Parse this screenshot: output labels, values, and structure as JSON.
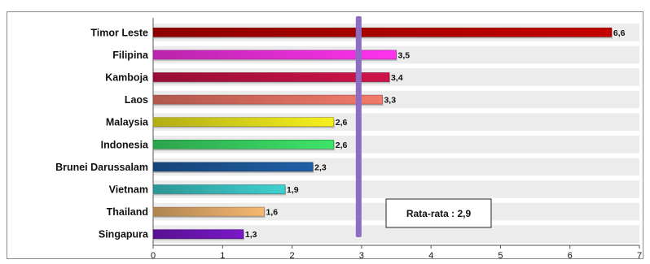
{
  "chart_data": {
    "type": "bar",
    "orientation": "horizontal",
    "categories": [
      "Timor Leste",
      "Filipina",
      "Kamboja",
      "Laos",
      "Malaysia",
      "Indonesia",
      "Brunei Darussalam",
      "Vietnam",
      "Thailand",
      "Singapura"
    ],
    "values": [
      6.6,
      3.5,
      3.4,
      3.3,
      2.6,
      2.6,
      2.3,
      1.9,
      1.6,
      1.3
    ],
    "value_labels": [
      "6,6",
      "3,5",
      "3,4",
      "3,3",
      "2,6",
      "2,6",
      "2,3",
      "1,9",
      "1,6",
      "1,3"
    ],
    "bar_colors": [
      "#c40000",
      "#ff33ee",
      "#d0144a",
      "#f47a6a",
      "#f6f01e",
      "#3ee46a",
      "#1f5fa6",
      "#3fd0d0",
      "#f5b871",
      "#7a18c9"
    ],
    "xlim": [
      0,
      7
    ],
    "x_ticks": [
      0,
      1,
      2,
      3,
      4,
      5,
      6,
      7
    ],
    "x_tick_labels": [
      "0",
      "1",
      "2",
      "3",
      "4",
      "5",
      "6",
      "7"
    ],
    "reference_line": {
      "value": 2.9,
      "color": "#8c6cc4",
      "label": "Rata-rata : 2,9"
    },
    "grid": "horizontal bands",
    "title": "",
    "xlabel": "",
    "ylabel": ""
  }
}
